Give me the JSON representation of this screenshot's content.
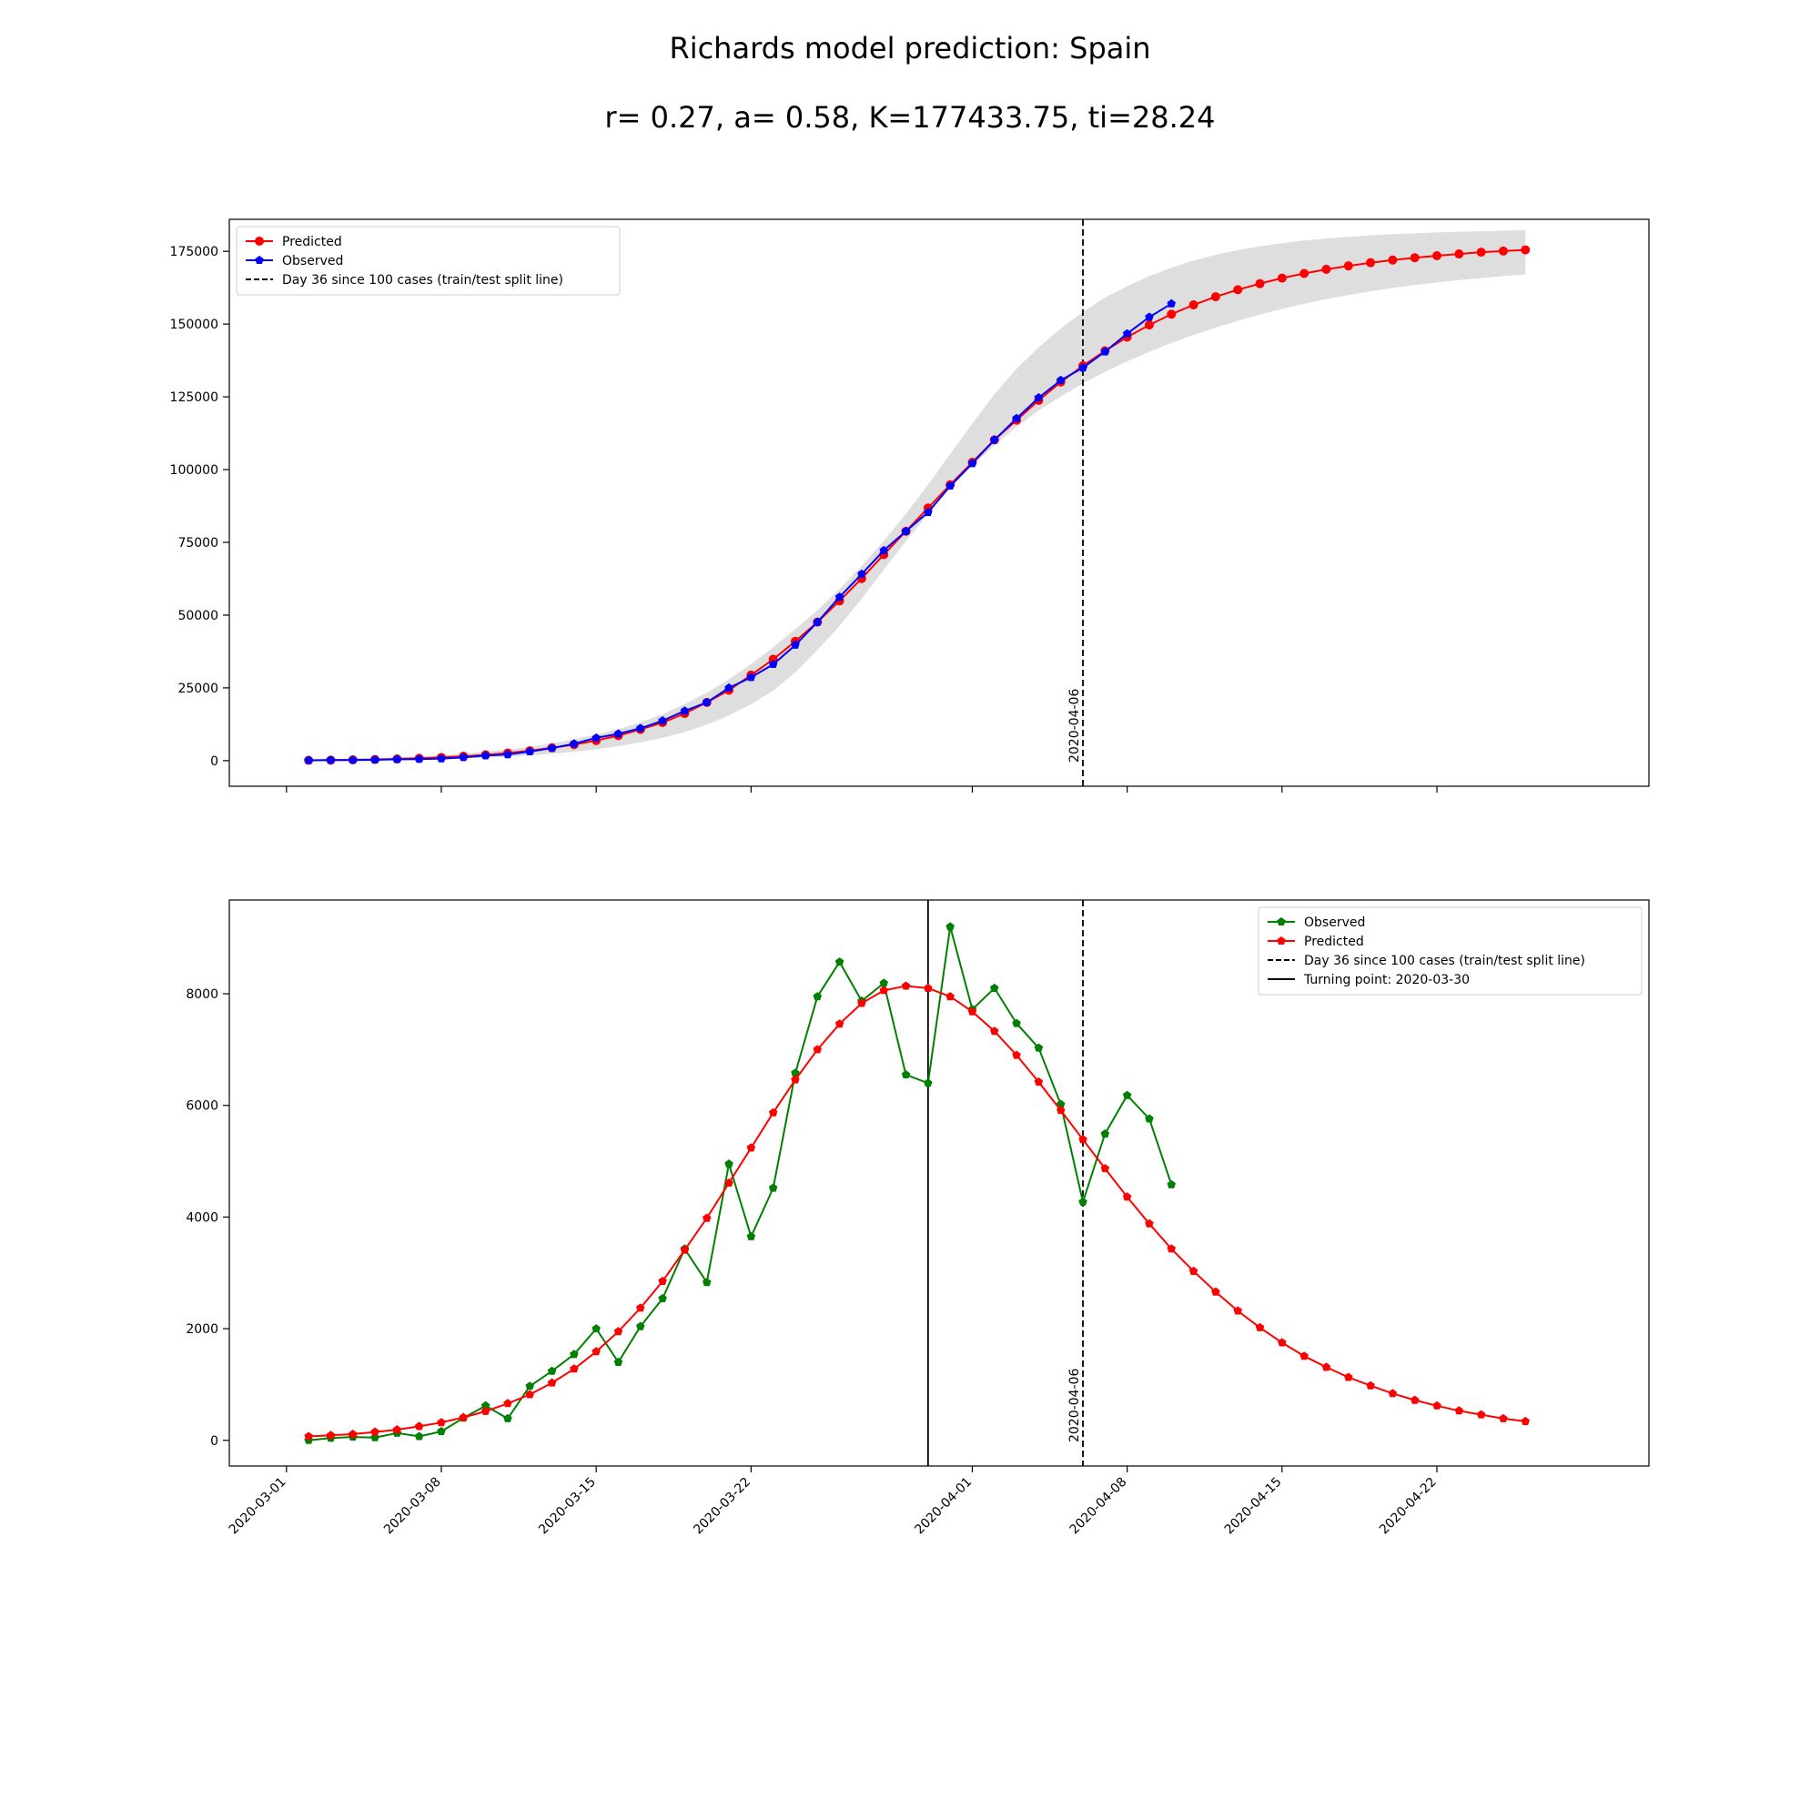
{
  "figure": {
    "title": "Richards model prediction: Spain",
    "subtitle": "r= 0.27, a= 0.58, K=177433.75, ti=28.24"
  },
  "chart_data": [
    {
      "type": "line",
      "title": "",
      "xlabel": "",
      "ylabel": "",
      "x_start": "2020-03-02",
      "xlim": [
        "2020-02-27T10:00",
        "2020-05-01T14:00"
      ],
      "ylim": [
        -8800,
        186000
      ],
      "yticks": [
        0,
        25000,
        50000,
        75000,
        100000,
        125000,
        150000,
        175000
      ],
      "grid": false,
      "legend_position": "upper-left",
      "colors": {
        "predicted": "#ff0000",
        "observed": "#0000ff",
        "band": "#d3d3d3",
        "vline": "#000000"
      },
      "series": [
        {
          "name": "Predicted",
          "marker": "circle",
          "values": [
            100,
            170,
            270,
            400,
            570,
            800,
            1100,
            1500,
            2000,
            2600,
            3400,
            4400,
            5500,
            6900,
            8600,
            10700,
            13100,
            16200,
            20000,
            24200,
            29400,
            34800,
            41000,
            47600,
            54900,
            62600,
            70800,
            78800,
            86800,
            94800,
            102500,
            110200,
            117000,
            123800,
            130100,
            135700,
            140800,
            145500,
            149700,
            153400,
            156600,
            159400,
            161800,
            163900,
            165800,
            167400,
            168800,
            170000,
            171100,
            172000,
            172800,
            173500,
            174100,
            174700,
            175100,
            175500
          ]
        },
        {
          "name": "Observed",
          "marker": "pentagon",
          "values": [
            120,
            160,
            220,
            280,
            450,
            520,
            700,
            1100,
            1700,
            2100,
            3100,
            4300,
            5800,
            7800,
            9200,
            11100,
            13700,
            17100,
            20000,
            25000,
            28600,
            33100,
            39700,
            47600,
            56200,
            64100,
            72200,
            78800,
            85300,
            94400,
            102100,
            110200,
            117600,
            124700,
            130700,
            135000,
            140500,
            146700,
            152400,
            157000
          ]
        }
      ],
      "band": {
        "lower": [
          0,
          50,
          100,
          170,
          260,
          380,
          540,
          750,
          1020,
          1350,
          1780,
          2340,
          3050,
          3950,
          4950,
          6300,
          7800,
          9800,
          12400,
          15500,
          19400,
          24000,
          30400,
          38000,
          46300,
          55600,
          65600,
          75400,
          84800,
          93700,
          101500,
          108400,
          114700,
          120300,
          125100,
          129600,
          133600,
          137200,
          140500,
          143500,
          146300,
          148800,
          151100,
          153300,
          155200,
          157000,
          158600,
          160000,
          161300,
          162400,
          163400,
          164300,
          165100,
          165800,
          166500,
          167100
        ],
        "upper": [
          350,
          480,
          640,
          850,
          1110,
          1440,
          1860,
          2400,
          3050,
          3820,
          4780,
          5940,
          7320,
          8950,
          10850,
          13150,
          15900,
          19450,
          23350,
          27900,
          33200,
          38900,
          45200,
          51600,
          59000,
          66900,
          75500,
          84800,
          94800,
          105400,
          115800,
          125900,
          134700,
          142000,
          148500,
          154200,
          159100,
          163000,
          166500,
          169400,
          171800,
          173800,
          175400,
          176700,
          177800,
          178700,
          179400,
          180000,
          180500,
          180900,
          181200,
          181500,
          181700,
          181900,
          182100,
          182300
        ]
      },
      "vlines": [
        {
          "name": "Day 36 since 100 cases (train/test split line)",
          "date": "2020-04-06",
          "label": "2020-04-06",
          "style": "dashed"
        }
      ]
    },
    {
      "type": "line",
      "title": "",
      "xlabel": "",
      "ylabel": "",
      "x_start": "2020-03-02",
      "xlim": [
        "2020-02-27T10:00",
        "2020-05-01T14:00"
      ],
      "ylim": [
        -460,
        9680
      ],
      "yticks": [
        0,
        2000,
        4000,
        6000,
        8000
      ],
      "xticks": [
        "2020-03-01",
        "2020-03-08",
        "2020-03-15",
        "2020-03-22",
        "2020-04-01",
        "2020-04-08",
        "2020-04-15",
        "2020-04-22"
      ],
      "grid": false,
      "legend_position": "upper-right",
      "colors": {
        "observed": "#008000",
        "predicted": "#ff0000",
        "vline": "#000000"
      },
      "series": [
        {
          "name": "Observed",
          "marker": "pentagon",
          "values": [
            0,
            40,
            60,
            50,
            130,
            70,
            160,
            400,
            620,
            390,
            970,
            1240,
            1540,
            2000,
            1400,
            2040,
            2540,
            3430,
            2830,
            4950,
            3650,
            4520,
            6580,
            7950,
            8570,
            7870,
            8190,
            6550,
            6400,
            9200,
            7720,
            8100,
            7470,
            7030,
            6020,
            4270,
            5490,
            6180,
            5760,
            4580
          ]
        },
        {
          "name": "Predicted",
          "marker": "pentagon",
          "values": [
            70,
            90,
            110,
            150,
            190,
            250,
            320,
            410,
            520,
            660,
            820,
            1030,
            1280,
            1590,
            1950,
            2370,
            2850,
            3410,
            3980,
            4610,
            5240,
            5870,
            6460,
            7000,
            7460,
            7830,
            8060,
            8140,
            8100,
            7950,
            7680,
            7330,
            6900,
            6420,
            5910,
            5390,
            4870,
            4360,
            3880,
            3430,
            3030,
            2660,
            2320,
            2020,
            1750,
            1510,
            1310,
            1130,
            980,
            840,
            720,
            620,
            530,
            460,
            390,
            340
          ]
        }
      ],
      "vlines": [
        {
          "name": "Day 36 since 100 cases (train/test split line)",
          "date": "2020-04-06",
          "label": "2020-04-06",
          "style": "dashed"
        },
        {
          "name": "Turning point: 2020-03-30",
          "date": "2020-03-30",
          "label": "",
          "style": "solid"
        }
      ]
    }
  ]
}
